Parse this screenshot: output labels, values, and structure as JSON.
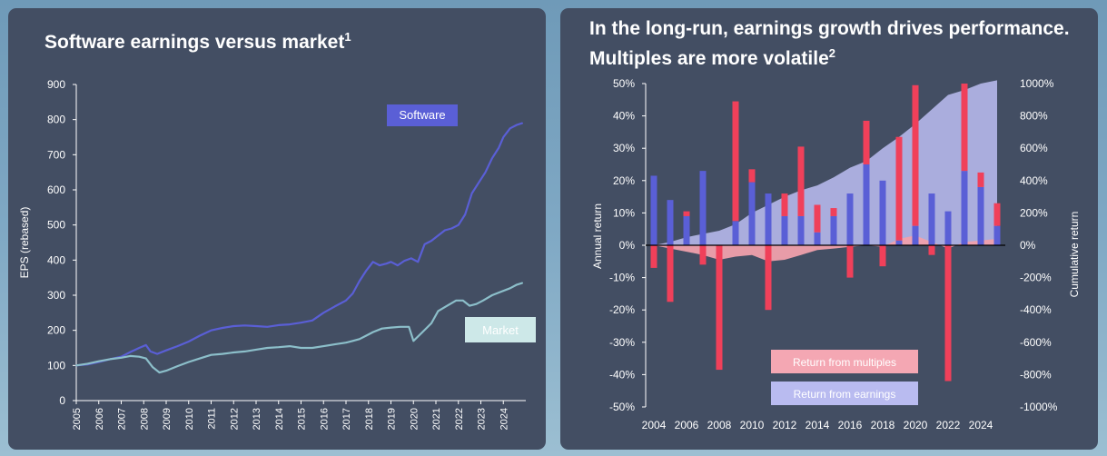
{
  "colors": {
    "panel": "#434e63",
    "software": "#5a5fd6",
    "market": "#8cbfca",
    "multiples": "#f0405a",
    "earnings_bar": "#5a5fd6",
    "earnings_area": "#b6b8ea",
    "multiples_area": "#f0a0ac",
    "axis": "#ffffff"
  },
  "left": {
    "title": "Software earnings versus market",
    "title_sup": "1"
  },
  "right": {
    "title": "In the long-run, earnings growth drives performance. Multiples are more volatile",
    "title_sup": "2"
  },
  "chart_data": [
    {
      "type": "line",
      "title": "Software earnings versus market",
      "xlabel": "",
      "ylabel": "EPS (rebased)",
      "ylim": [
        0,
        900
      ],
      "yticks": [
        "0",
        "100",
        "200",
        "300",
        "400",
        "500",
        "600",
        "700",
        "800",
        "900"
      ],
      "xticks": [
        "2005",
        "2006",
        "2007",
        "2008",
        "2009",
        "2010",
        "2011",
        "2012",
        "2013",
        "2014",
        "2015",
        "2016",
        "2017",
        "2018",
        "2019",
        "2020",
        "2021",
        "2022",
        "2023",
        "2024"
      ],
      "series": [
        {
          "name": "Software",
          "x": [
            2005,
            2005.5,
            2006,
            2006.5,
            2007,
            2007.4,
            2007.8,
            2008.1,
            2008.3,
            2008.6,
            2009,
            2009.5,
            2010,
            2010.5,
            2011,
            2011.5,
            2012,
            2012.5,
            2013,
            2013.5,
            2014,
            2014.5,
            2015,
            2015.5,
            2016,
            2016.5,
            2017,
            2017.3,
            2017.6,
            2017.9,
            2018.2,
            2018.5,
            2018.8,
            2019,
            2019.3,
            2019.6,
            2019.9,
            2020.2,
            2020.5,
            2020.8,
            2021.1,
            2021.4,
            2021.7,
            2022,
            2022.3,
            2022.6,
            2022.9,
            2023.2,
            2023.5,
            2023.8,
            2024,
            2024.3,
            2024.6,
            2024.85
          ],
          "values": [
            100,
            103,
            110,
            118,
            125,
            138,
            150,
            158,
            140,
            133,
            143,
            155,
            168,
            185,
            200,
            207,
            212,
            214,
            212,
            210,
            215,
            217,
            222,
            228,
            250,
            268,
            285,
            305,
            340,
            370,
            395,
            385,
            390,
            395,
            385,
            398,
            405,
            395,
            445,
            455,
            470,
            485,
            490,
            500,
            530,
            590,
            620,
            650,
            690,
            720,
            750,
            775,
            785,
            790
          ]
        },
        {
          "name": "Market",
          "x": [
            2005,
            2005.5,
            2006,
            2006.5,
            2007,
            2007.4,
            2007.8,
            2008.1,
            2008.4,
            2008.7,
            2009,
            2009.5,
            2010,
            2010.5,
            2011,
            2011.5,
            2012,
            2012.5,
            2013,
            2013.5,
            2014,
            2014.5,
            2015,
            2015.5,
            2016,
            2016.5,
            2017,
            2017.3,
            2017.6,
            2017.9,
            2018.2,
            2018.6,
            2019,
            2019.4,
            2019.8,
            2020,
            2020.4,
            2020.8,
            2021.1,
            2021.5,
            2021.9,
            2022.2,
            2022.5,
            2022.8,
            2023.1,
            2023.5,
            2023.9,
            2024.3,
            2024.6,
            2024.85
          ],
          "values": [
            100,
            105,
            112,
            118,
            122,
            127,
            125,
            120,
            95,
            80,
            85,
            98,
            110,
            120,
            130,
            133,
            137,
            140,
            145,
            150,
            152,
            155,
            150,
            150,
            155,
            160,
            165,
            170,
            175,
            185,
            195,
            205,
            208,
            210,
            210,
            170,
            195,
            220,
            255,
            270,
            285,
            285,
            270,
            275,
            285,
            300,
            310,
            320,
            330,
            335
          ]
        }
      ],
      "annotations": [
        "Software",
        "Market"
      ]
    },
    {
      "type": "bar",
      "title": "In the long-run, earnings growth drives performance. Multiples are more volatile",
      "xlabel": "",
      "ylabel": "Annual return",
      "ylabel_right": "Cumulative return",
      "ylim": [
        -50,
        50
      ],
      "ylim_right": [
        -1000,
        1000
      ],
      "yticks": [
        "50%",
        "40%",
        "30%",
        "20%",
        "10%",
        "0%",
        "-10%",
        "-20%",
        "-30%",
        "-40%",
        "-50%"
      ],
      "yticks_right": [
        "1000%",
        "800%",
        "600%",
        "400%",
        "200%",
        "0%",
        "-200%",
        "-400%",
        "-600%",
        "-800%",
        "-1000%"
      ],
      "xticks": [
        "2004",
        "2006",
        "2008",
        "2010",
        "2012",
        "2014",
        "2016",
        "2018",
        "2020",
        "2022",
        "2024"
      ],
      "categories": [
        2004,
        2005,
        2006,
        2007,
        2008,
        2009,
        2010,
        2011,
        2012,
        2013,
        2014,
        2015,
        2016,
        2017,
        2018,
        2019,
        2020,
        2021,
        2022,
        2023,
        2024,
        2025
      ],
      "series": [
        {
          "name": "Return from earnings",
          "values": [
            21.5,
            14,
            9,
            23,
            0,
            7.5,
            19.5,
            16,
            9,
            9,
            4,
            9,
            16,
            25,
            20,
            1.5,
            6,
            16,
            10.5,
            23,
            18,
            6
          ]
        },
        {
          "name": "Return from multiples",
          "values": [
            -7,
            -17.5,
            1.5,
            -6,
            -38.5,
            37,
            4,
            -20,
            7,
            21.5,
            8.5,
            2.5,
            -10,
            13.5,
            -6.5,
            32,
            43.5,
            -3,
            -42,
            27,
            4.5,
            7
          ]
        },
        {
          "name": "Cumulative earnings",
          "values": [
            0,
            20,
            50,
            70,
            90,
            130,
            200,
            250,
            300,
            340,
            370,
            420,
            480,
            520,
            600,
            670,
            750,
            840,
            930,
            960,
            1000,
            1020
          ]
        },
        {
          "name": "Cumulative multiples",
          "values": [
            0,
            -20,
            -40,
            -60,
            -90,
            -70,
            -60,
            -100,
            -90,
            -60,
            -30,
            -20,
            -10,
            0,
            -10,
            40,
            60,
            20,
            -20,
            20,
            30,
            40
          ]
        }
      ],
      "legend": [
        "Return from multiples",
        "Return from earnings"
      ]
    }
  ]
}
